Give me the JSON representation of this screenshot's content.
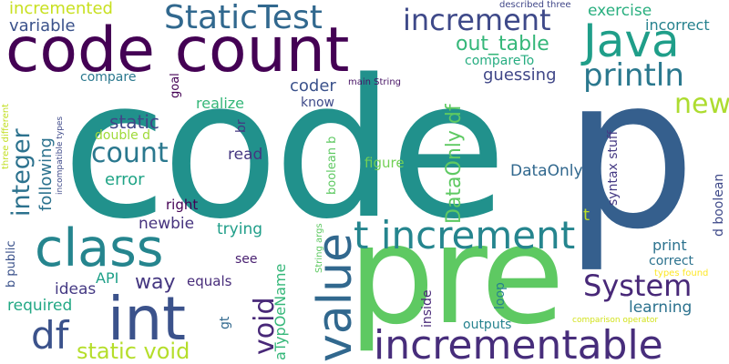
{
  "words": [
    {
      "text": "code",
      "color": "#21918c"
    },
    {
      "text": "p",
      "color": "#355f8d"
    },
    {
      "text": "pre",
      "color": "#5ec962"
    },
    {
      "text": "code count",
      "color": "#440154"
    },
    {
      "text": "class",
      "color": "#25858e"
    },
    {
      "text": "int",
      "color": "#3b528b"
    },
    {
      "text": "value",
      "color": "#31688e"
    },
    {
      "text": "incrementable",
      "color": "#472d7b"
    },
    {
      "text": "t increment",
      "color": "#25858e"
    },
    {
      "text": "Java",
      "color": "#1f9e89"
    },
    {
      "text": "StaticTest",
      "color": "#31688e"
    },
    {
      "text": "increment",
      "color": "#3e4989"
    },
    {
      "text": "println",
      "color": "#2a788e"
    },
    {
      "text": "count",
      "color": "#2a788e"
    },
    {
      "text": "new",
      "color": "#addc30"
    },
    {
      "text": "System",
      "color": "#482878"
    },
    {
      "text": "df",
      "color": "#3b528b"
    },
    {
      "text": "void",
      "color": "#482878"
    },
    {
      "text": "static void",
      "color": "#b5de2b"
    },
    {
      "text": "integer",
      "color": "#2c728e"
    },
    {
      "text": "DataOnly df",
      "color": "#5ec962"
    },
    {
      "text": "out_table",
      "color": "#35b779"
    },
    {
      "text": "aTypOeName",
      "color": "#35b779"
    },
    {
      "text": "incremented",
      "color": "#c8e020"
    },
    {
      "text": "variable",
      "color": "#3b528b"
    },
    {
      "text": "exercise",
      "color": "#29af7f"
    },
    {
      "text": "incorrect",
      "color": "#26828e"
    },
    {
      "text": "described three",
      "color": "#404788"
    },
    {
      "text": "compareTo",
      "color": "#27ad81"
    },
    {
      "text": "guessing",
      "color": "#404788"
    },
    {
      "text": "coder",
      "color": "#3b528b"
    },
    {
      "text": "know",
      "color": "#3e4989"
    },
    {
      "text": "realize",
      "color": "#35b779"
    },
    {
      "text": "compare",
      "color": "#2a788e"
    },
    {
      "text": "main String",
      "color": "#471365"
    },
    {
      "text": "goal",
      "color": "#440154"
    },
    {
      "text": "static",
      "color": "#404788"
    },
    {
      "text": "following",
      "color": "#2c728e"
    },
    {
      "text": "double d",
      "color": "#a0da39"
    },
    {
      "text": "error",
      "color": "#20a486"
    },
    {
      "text": "read",
      "color": "#453781"
    },
    {
      "text": "br",
      "color": "#453781"
    },
    {
      "text": "figure",
      "color": "#73d056"
    },
    {
      "text": "DataOnly",
      "color": "#31688e"
    },
    {
      "text": "syntax stuff",
      "color": "#443983"
    },
    {
      "text": "d boolean",
      "color": "#3e4989"
    },
    {
      "text": "boolean b",
      "color": "#5ec962"
    },
    {
      "text": "right",
      "color": "#440154"
    },
    {
      "text": "newbie",
      "color": "#46337e"
    },
    {
      "text": "trying",
      "color": "#1f9e89"
    },
    {
      "text": "t",
      "color": "#bddf26"
    },
    {
      "text": "correct",
      "color": "#2c728e"
    },
    {
      "text": "print",
      "color": "#2c728e"
    },
    {
      "text": "learning",
      "color": "#2c728e"
    },
    {
      "text": "see",
      "color": "#481f70"
    },
    {
      "text": "API",
      "color": "#1fa088"
    },
    {
      "text": "way",
      "color": "#453781"
    },
    {
      "text": "ideas",
      "color": "#443983"
    },
    {
      "text": "required",
      "color": "#22a884"
    },
    {
      "text": "equals",
      "color": "#472c7a"
    },
    {
      "text": "b public",
      "color": "#3b528b"
    },
    {
      "text": "gt",
      "color": "#31688e"
    },
    {
      "text": "String args",
      "color": "#5ec962"
    },
    {
      "text": "inside",
      "color": "#482878"
    },
    {
      "text": "loop",
      "color": "#26828e"
    },
    {
      "text": "outputs",
      "color": "#26828e"
    },
    {
      "text": "types found",
      "color": "#fde725"
    },
    {
      "text": "comparison operator",
      "color": "#d2e21b"
    },
    {
      "text": "three different",
      "color": "#c2df23"
    },
    {
      "text": "incompatible types",
      "color": "#3e4989"
    }
  ]
}
